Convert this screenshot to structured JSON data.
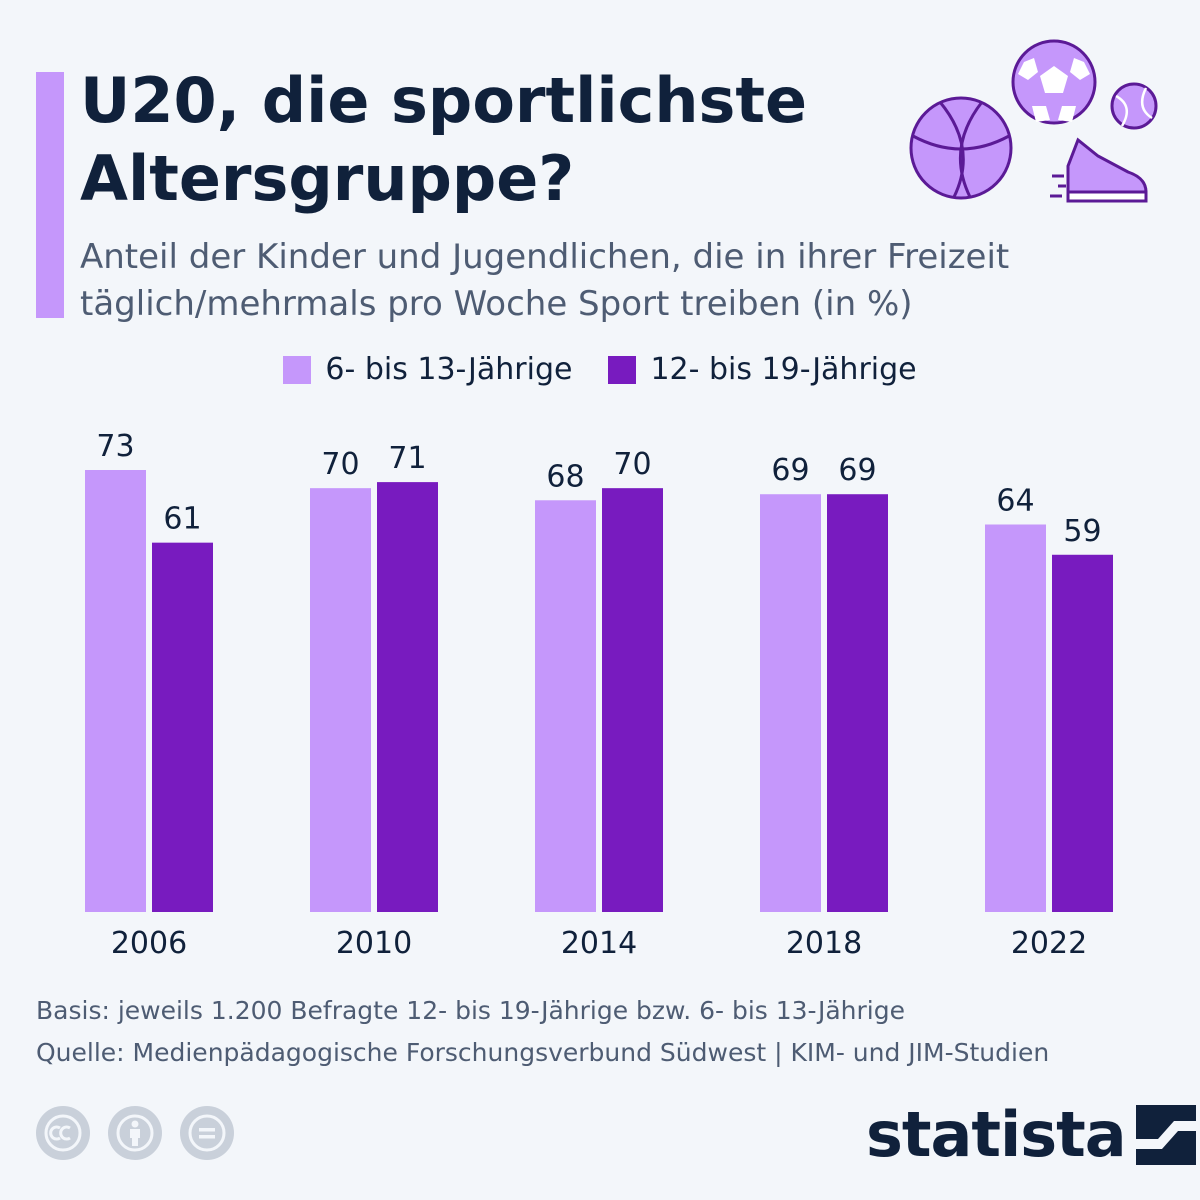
{
  "title": "U20, die sportlichste Altersgruppe?",
  "subtitle": "Anteil der Kinder und Jugendlichen, die in ihrer Freizeit täglich/mehrmals pro Woche Sport treiben (in %)",
  "colors": {
    "series_light": "#c597fb",
    "series_dark": "#781bbf",
    "text": "#10213b"
  },
  "chart_data": {
    "type": "bar",
    "categories": [
      "2006",
      "2010",
      "2014",
      "2018",
      "2022"
    ],
    "series": [
      {
        "name": "6- bis 13-Jährige",
        "values": [
          73,
          70,
          68,
          69,
          64
        ]
      },
      {
        "name": "12- bis 19-Jährige",
        "values": [
          61,
          71,
          70,
          69,
          59
        ]
      }
    ],
    "ylim": [
      0,
      73
    ],
    "grid": false,
    "legend": "top"
  },
  "footer": {
    "basis": "Basis: jeweils 1.200 Befragte 12- bis 19-Jährige bzw. 6- bis 13-Jährige",
    "source": "Quelle: Medienpädagogische Forschungsverbund Südwest | KIM- und JIM-Studien"
  },
  "brand": {
    "logo": "statista"
  },
  "icons": [
    "basketball-icon",
    "soccer-ball-icon",
    "tennis-ball-icon",
    "sneaker-icon",
    "cc-icon",
    "attribution-icon",
    "no-derivatives-icon"
  ]
}
